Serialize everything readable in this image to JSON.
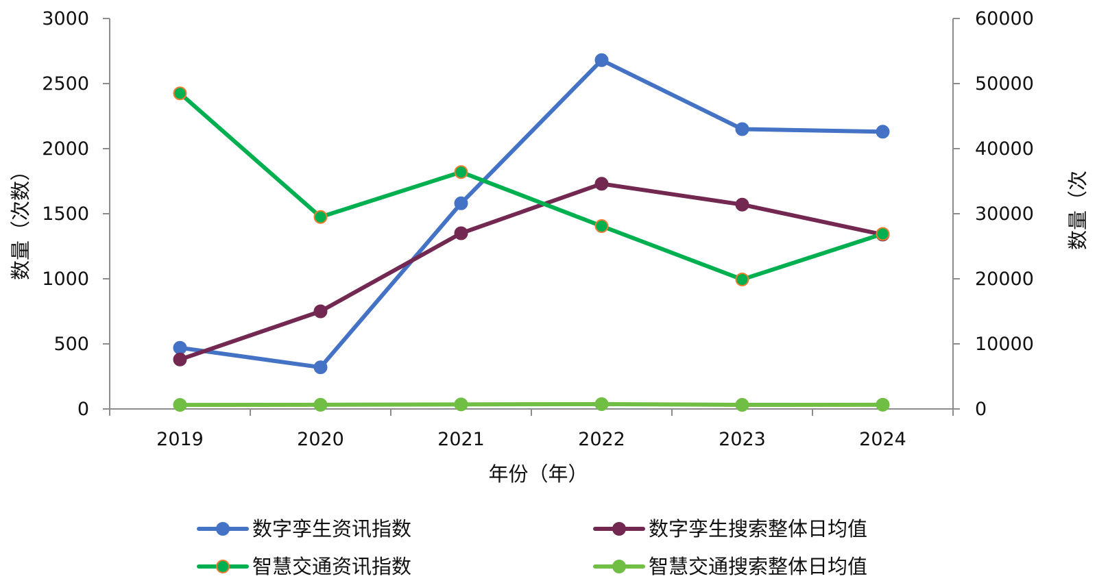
{
  "chart_data": {
    "type": "line",
    "categories": [
      "2019",
      "2020",
      "2021",
      "2022",
      "2023",
      "2024"
    ],
    "xlabel": "年份（年）",
    "ylabel_left": "数量（次数）",
    "ylabel_right": "数量（次",
    "ylim_left": [
      0,
      3000
    ],
    "yticks_left": [
      "0",
      "500",
      "1000",
      "1500",
      "2000",
      "2500",
      "3000"
    ],
    "ylim_right": [
      0,
      60000
    ],
    "yticks_right": [
      "0",
      "10000",
      "20000",
      "30000",
      "40000",
      "50000",
      "60000"
    ],
    "legend_position": "bottom",
    "grid": false,
    "series": [
      {
        "name": "数字孪生资讯指数",
        "axis": "left",
        "color": "#4472C4",
        "marker_fill": "#4472C4",
        "marker_stroke": "#4472C4",
        "values": [
          470,
          320,
          1580,
          2680,
          2150,
          2130
        ]
      },
      {
        "name": "数字孪生搜索整体日均值",
        "axis": "left",
        "color": "#722851",
        "marker_fill": "#722851",
        "marker_stroke": "#722851",
        "values": [
          380,
          750,
          1350,
          1730,
          1570,
          1340
        ]
      },
      {
        "name": "智慧交通资讯指数",
        "axis": "right",
        "color": "#00B050",
        "marker_fill": "#00B050",
        "marker_stroke": "#ED7D31",
        "values": [
          48500,
          29500,
          36400,
          28100,
          19900,
          26900
        ]
      },
      {
        "name": "智慧交通搜索整体日均值",
        "axis": "right",
        "color": "#70BF44",
        "marker_fill": "#70BF44",
        "marker_stroke": "#70BF44",
        "values": [
          620,
          640,
          700,
          740,
          630,
          650
        ]
      }
    ]
  }
}
